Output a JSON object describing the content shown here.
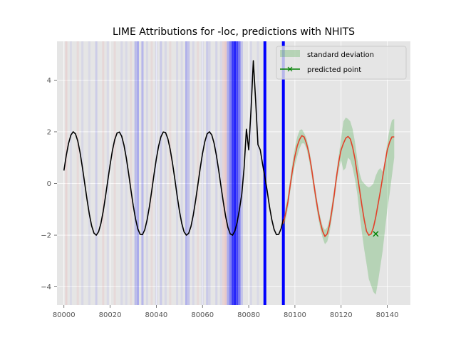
{
  "chart_data": {
    "type": "line",
    "title": "LIME Attributions for -loc, predictions with NHITS",
    "xlim": [
      79997,
      80150
    ],
    "ylim": [
      -4.7,
      5.5
    ],
    "x_ticks": [
      80000,
      80020,
      80040,
      80060,
      80080,
      80100,
      80120,
      80140
    ],
    "y_ticks": [
      -4,
      -2,
      0,
      2,
      4
    ],
    "x_tick_labels": [
      "80000",
      "80020",
      "80040",
      "80060",
      "80080",
      "80100",
      "80120",
      "80140"
    ],
    "y_tick_labels": [
      "−4",
      "−2",
      "0",
      "2",
      "4"
    ],
    "grid": true,
    "legend": {
      "placement": "top-right",
      "entries": [
        {
          "label": "standard deviation",
          "color": "#2ca02c",
          "kind": "fill"
        },
        {
          "label": "predicted point",
          "color": "#008000",
          "kind": "line-marker"
        }
      ]
    },
    "colors": {
      "history": "#000000",
      "forecast": "#e2412a",
      "std_band": "#2ca02c",
      "predicted_point": "#008000",
      "positive_attr": "#0000ff",
      "negative_attr": "#ff0000"
    },
    "history": {
      "x": [
        80000,
        80001,
        80002,
        80003,
        80004,
        80005,
        80006,
        80007,
        80008,
        80009,
        80010,
        80011,
        80012,
        80013,
        80014,
        80015,
        80016,
        80017,
        80018,
        80019,
        80020,
        80021,
        80022,
        80023,
        80024,
        80025,
        80026,
        80027,
        80028,
        80029,
        80030,
        80031,
        80032,
        80033,
        80034,
        80035,
        80036,
        80037,
        80038,
        80039,
        80040,
        80041,
        80042,
        80043,
        80044,
        80045,
        80046,
        80047,
        80048,
        80049,
        80050,
        80051,
        80052,
        80053,
        80054,
        80055,
        80056,
        80057,
        80058,
        80059,
        80060,
        80061,
        80062,
        80063,
        80064,
        80065,
        80066,
        80067,
        80068,
        80069,
        80070,
        80071,
        80072,
        80073,
        80074,
        80075,
        80076,
        80077,
        80078,
        80079,
        80080,
        80081,
        80082,
        80083,
        80084,
        80085,
        80086,
        80087,
        80088,
        80089,
        80090,
        80091,
        80092,
        80093,
        80094,
        80095
      ],
      "y": [
        0.5,
        1.08,
        1.55,
        1.87,
        2.0,
        1.92,
        1.64,
        1.19,
        0.62,
        0.0,
        -0.62,
        -1.19,
        -1.64,
        -1.92,
        -2.0,
        -1.87,
        -1.55,
        -1.08,
        -0.5,
        0.12,
        0.73,
        1.28,
        1.7,
        1.95,
        1.99,
        1.83,
        1.48,
        0.99,
        0.39,
        -0.25,
        -0.85,
        -1.37,
        -1.76,
        -1.97,
        -1.98,
        -1.79,
        -1.41,
        -0.9,
        -0.29,
        0.35,
        0.95,
        1.45,
        1.81,
        1.99,
        1.97,
        1.73,
        1.32,
        0.79,
        0.18,
        -0.47,
        -1.06,
        -1.54,
        -1.87,
        -2.0,
        -1.93,
        -1.66,
        -1.22,
        -0.66,
        -0.04,
        0.59,
        1.16,
        1.62,
        1.92,
        2.0,
        1.88,
        1.56,
        1.09,
        0.51,
        -0.11,
        -0.72,
        -1.27,
        -1.7,
        -1.95,
        -2.0,
        -1.84,
        -1.5,
        -1.0,
        -0.41,
        0.6,
        2.1,
        1.3,
        2.85,
        4.75,
        3.2,
        1.5,
        1.3,
        0.75,
        0.25,
        -0.29,
        -0.9,
        -1.4,
        -1.78,
        -1.98,
        -1.97,
        -1.75,
        -1.38
      ]
    },
    "forecast": {
      "x": [
        80095,
        80096,
        80097,
        80098,
        80099,
        80100,
        80101,
        80102,
        80103,
        80104,
        80105,
        80106,
        80107,
        80108,
        80109,
        80110,
        80111,
        80112,
        80113,
        80114,
        80115,
        80116,
        80117,
        80118,
        80119,
        80120,
        80121,
        80122,
        80123,
        80124,
        80125,
        80126,
        80127,
        80128,
        80129,
        80130,
        80131,
        80132,
        80133,
        80134,
        80135,
        80136,
        80137,
        80138,
        80139,
        80140,
        80141,
        80142,
        80143
      ],
      "y": [
        -1.55,
        -1.15,
        -0.7,
        -0.05,
        0.55,
        1.05,
        1.45,
        1.7,
        1.85,
        1.8,
        1.55,
        1.2,
        0.7,
        0.1,
        -0.5,
        -1.05,
        -1.5,
        -1.85,
        -2.05,
        -1.95,
        -1.6,
        -1.05,
        -0.45,
        0.25,
        0.85,
        1.3,
        1.55,
        1.75,
        1.82,
        1.72,
        1.4,
        0.95,
        0.35,
        -0.25,
        -0.85,
        -1.4,
        -1.85,
        -2.0,
        -1.95,
        -1.7,
        -1.3,
        -0.8,
        -0.3,
        0.25,
        0.8,
        1.3,
        1.6,
        1.8,
        1.8
      ]
    },
    "std_band": {
      "x": [
        80095,
        80096,
        80097,
        80098,
        80099,
        80100,
        80101,
        80102,
        80103,
        80104,
        80105,
        80106,
        80107,
        80108,
        80109,
        80110,
        80111,
        80112,
        80113,
        80114,
        80115,
        80116,
        80117,
        80118,
        80119,
        80120,
        80121,
        80122,
        80123,
        80124,
        80125,
        80126,
        80127,
        80128,
        80129,
        80130,
        80131,
        80132,
        80133,
        80134,
        80135,
        80136,
        80137,
        80138,
        80139,
        80140,
        80141,
        80142,
        80143
      ],
      "upper": [
        -1.35,
        -0.9,
        -0.45,
        0.2,
        0.85,
        1.4,
        1.8,
        2.05,
        2.1,
        1.95,
        1.75,
        1.4,
        0.9,
        0.3,
        -0.3,
        -0.85,
        -1.3,
        -1.65,
        -1.8,
        -1.7,
        -1.35,
        -0.8,
        -0.2,
        0.45,
        1.1,
        1.75,
        2.4,
        2.55,
        2.5,
        2.4,
        2.1,
        1.6,
        0.95,
        0.4,
        0.1,
        0.0,
        -0.1,
        -0.15,
        -0.1,
        0.0,
        0.3,
        0.5,
        0.6,
        0.45,
        0.9,
        1.6,
        2.1,
        2.45,
        2.5
      ],
      "lower": [
        -1.8,
        -1.4,
        -0.95,
        -0.3,
        0.25,
        0.7,
        1.05,
        1.35,
        1.55,
        1.55,
        1.35,
        0.95,
        0.45,
        -0.15,
        -0.75,
        -1.3,
        -1.75,
        -2.1,
        -2.35,
        -2.25,
        -1.9,
        -1.35,
        -0.7,
        0.0,
        0.55,
        0.9,
        0.5,
        0.6,
        1.0,
        0.9,
        0.6,
        0.15,
        -0.4,
        -1.2,
        -1.9,
        -2.55,
        -3.1,
        -3.7,
        -3.95,
        -4.2,
        -4.3,
        -3.8,
        -3.2,
        -2.6,
        -1.8,
        -1.0,
        -0.4,
        0.3,
        1.0
      ]
    },
    "predicted_point": {
      "x": 80135,
      "y": -1.95
    },
    "attributions": [
      {
        "x": 80001,
        "weight": 0.07,
        "sign": "negative"
      },
      {
        "x": 80003,
        "weight": 0.05,
        "sign": "positive"
      },
      {
        "x": 80006,
        "weight": 0.05,
        "sign": "negative"
      },
      {
        "x": 80008,
        "weight": 0.06,
        "sign": "positive"
      },
      {
        "x": 80011,
        "weight": 0.05,
        "sign": "positive"
      },
      {
        "x": 80014,
        "weight": 0.1,
        "sign": "positive"
      },
      {
        "x": 80017,
        "weight": 0.06,
        "sign": "negative"
      },
      {
        "x": 80019,
        "weight": 0.05,
        "sign": "positive"
      },
      {
        "x": 80022,
        "weight": 0.05,
        "sign": "negative"
      },
      {
        "x": 80025,
        "weight": 0.06,
        "sign": "positive"
      },
      {
        "x": 80027,
        "weight": 0.05,
        "sign": "positive"
      },
      {
        "x": 80029,
        "weight": 0.05,
        "sign": "negative"
      },
      {
        "x": 80031,
        "weight": 0.18,
        "sign": "positive"
      },
      {
        "x": 80032,
        "weight": 0.25,
        "sign": "positive"
      },
      {
        "x": 80034,
        "weight": 0.2,
        "sign": "positive"
      },
      {
        "x": 80036,
        "weight": 0.06,
        "sign": "positive"
      },
      {
        "x": 80038,
        "weight": 0.05,
        "sign": "negative"
      },
      {
        "x": 80040,
        "weight": 0.06,
        "sign": "positive"
      },
      {
        "x": 80042,
        "weight": 0.12,
        "sign": "positive"
      },
      {
        "x": 80044,
        "weight": 0.06,
        "sign": "positive"
      },
      {
        "x": 80046,
        "weight": 0.05,
        "sign": "negative"
      },
      {
        "x": 80049,
        "weight": 0.06,
        "sign": "positive"
      },
      {
        "x": 80051,
        "weight": 0.05,
        "sign": "positive"
      },
      {
        "x": 80053,
        "weight": 0.22,
        "sign": "positive"
      },
      {
        "x": 80054,
        "weight": 0.15,
        "sign": "positive"
      },
      {
        "x": 80056,
        "weight": 0.06,
        "sign": "positive"
      },
      {
        "x": 80058,
        "weight": 0.05,
        "sign": "negative"
      },
      {
        "x": 80060,
        "weight": 0.06,
        "sign": "positive"
      },
      {
        "x": 80062,
        "weight": 0.12,
        "sign": "positive"
      },
      {
        "x": 80063,
        "weight": 0.08,
        "sign": "positive"
      },
      {
        "x": 80066,
        "weight": 0.08,
        "sign": "positive"
      },
      {
        "x": 80068,
        "weight": 0.06,
        "sign": "positive"
      },
      {
        "x": 80069,
        "weight": 0.08,
        "sign": "negative"
      },
      {
        "x": 80070,
        "weight": 0.12,
        "sign": "negative"
      },
      {
        "x": 80071,
        "weight": 0.25,
        "sign": "positive"
      },
      {
        "x": 80072,
        "weight": 0.45,
        "sign": "positive"
      },
      {
        "x": 80073,
        "weight": 0.75,
        "sign": "positive"
      },
      {
        "x": 80074,
        "weight": 0.85,
        "sign": "positive"
      },
      {
        "x": 80075,
        "weight": 0.7,
        "sign": "positive"
      },
      {
        "x": 80076,
        "weight": 0.45,
        "sign": "positive"
      },
      {
        "x": 80077,
        "weight": 0.15,
        "sign": "positive"
      },
      {
        "x": 80081,
        "weight": 0.06,
        "sign": "positive"
      },
      {
        "x": 80084,
        "weight": 0.05,
        "sign": "positive"
      },
      {
        "x": 80087,
        "weight": 1.0,
        "sign": "positive"
      },
      {
        "x": 80095,
        "weight": 1.0,
        "sign": "positive"
      }
    ]
  }
}
